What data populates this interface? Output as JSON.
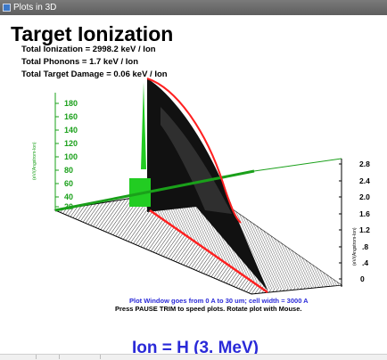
{
  "window": {
    "title": "Plots in 3D"
  },
  "plot": {
    "title": "Target Ionization",
    "stats": [
      "Total Ionization = 2998.2 keV / Ion",
      "Total Phonons = 1.7 keV / Ion",
      "Total Target Damage = 0.06 keV / Ion"
    ],
    "left_axis": {
      "label": "(eV/(Angstrom-Ion)",
      "ticks": [
        "180",
        "160",
        "140",
        "120",
        "100",
        "80",
        "60",
        "40",
        "20"
      ],
      "color": "#1aa01a"
    },
    "right_axis": {
      "label": "(eV/(Angstrom-Ion)",
      "ticks": [
        "2.8",
        "2.4",
        "2.0",
        "1.6",
        "1.2",
        ".8",
        ".4",
        "0"
      ],
      "color": "#000000"
    },
    "footer": {
      "window_info": "Plot Window goes from 0 A to 30 um;  cell width = 3000 A",
      "instructions": "Press PAUSE TRIM to speed plots.    Rotate plot with Mouse.",
      "ion": "Ion =  H (3. MeV)"
    },
    "colors": {
      "curve": "#ff2020",
      "accent": "#2a2ad8",
      "green": "#22cc22"
    }
  }
}
